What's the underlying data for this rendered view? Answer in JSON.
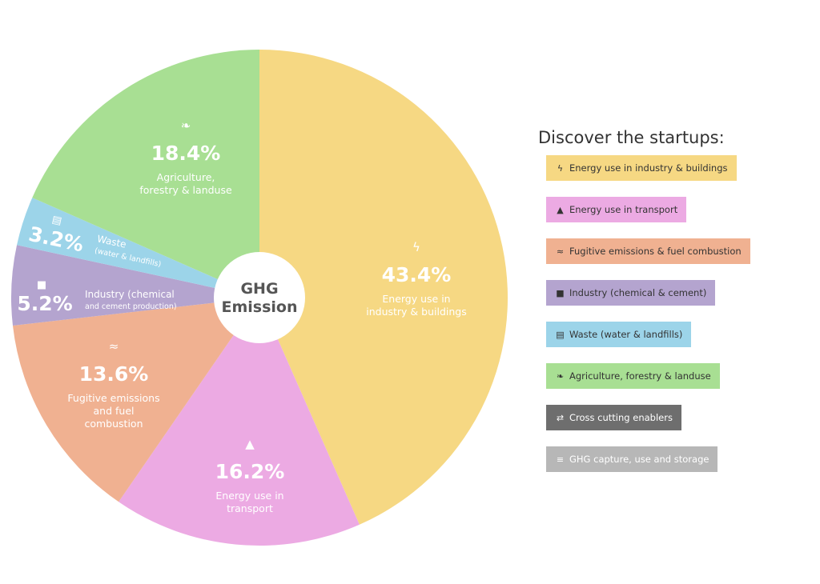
{
  "center": {
    "line1": "GHG",
    "line2": "Emission"
  },
  "panel": {
    "title": "Discover the startups:"
  },
  "chart_data": {
    "type": "pie",
    "slices": [
      {
        "key": "energy",
        "value": 43.4,
        "label": "43.4%",
        "desc": [
          "Energy use in",
          "industry & buildings"
        ],
        "color": "#F6D883",
        "icon": "lightning-icon",
        "glyph": "ϟ"
      },
      {
        "key": "transport",
        "value": 16.2,
        "label": "16.2%",
        "desc": [
          "Energy use in",
          "transport"
        ],
        "color": "#ECAAE3",
        "icon": "road-icon",
        "glyph": "▲"
      },
      {
        "key": "fugitive",
        "value": 13.6,
        "label": "13.6%",
        "desc": [
          "Fugitive emissions",
          "and fuel",
          "combustion"
        ],
        "color": "#F0B191",
        "icon": "flame-icon",
        "glyph": "≈"
      },
      {
        "key": "industry",
        "value": 5.2,
        "label": "5.2%",
        "desc": [
          "Industry (chemical",
          "and cement production)"
        ],
        "color": "#B4A4CF",
        "icon": "factory-icon",
        "glyph": "■"
      },
      {
        "key": "waste",
        "value": 3.2,
        "label": "3.2%",
        "desc": [
          "Waste",
          "(water & landfills)"
        ],
        "color": "#9CD4E9",
        "icon": "trash-icon",
        "glyph": "▤"
      },
      {
        "key": "agri",
        "value": 18.4,
        "label": "18.4%",
        "desc": [
          "Agriculture,",
          "forestry & landuse"
        ],
        "color": "#A8DF93",
        "icon": "leaf-icon",
        "glyph": "❧"
      }
    ]
  },
  "buttons": [
    {
      "label": "Energy use in industry & buildings",
      "color": "#F6D883",
      "icon": "lightning-icon",
      "glyph": "ϟ"
    },
    {
      "label": "Energy use in transport",
      "color": "#ECAAE3",
      "icon": "road-icon",
      "glyph": "▲"
    },
    {
      "label": "Fugitive emissions & fuel combustion",
      "color": "#F0B191",
      "icon": "flame-icon",
      "glyph": "≈"
    },
    {
      "label": "Industry (chemical & cement)",
      "color": "#B4A4CF",
      "icon": "factory-icon",
      "glyph": "■"
    },
    {
      "label": "Waste (water & landfills)",
      "color": "#9CD4E9",
      "icon": "trash-icon",
      "glyph": "▤"
    },
    {
      "label": "Agriculture, forestry & landuse",
      "color": "#A8DF93",
      "icon": "leaf-icon",
      "glyph": "❧"
    },
    {
      "label": "Cross cutting enablers",
      "color": "#6E6E6E",
      "icon": "swap-arrows-icon",
      "glyph": "⇄",
      "dark": true
    },
    {
      "label": "GHG capture, use and storage",
      "color": "#B7B7B7",
      "icon": "layers-icon",
      "glyph": "≡",
      "dark": true
    }
  ]
}
